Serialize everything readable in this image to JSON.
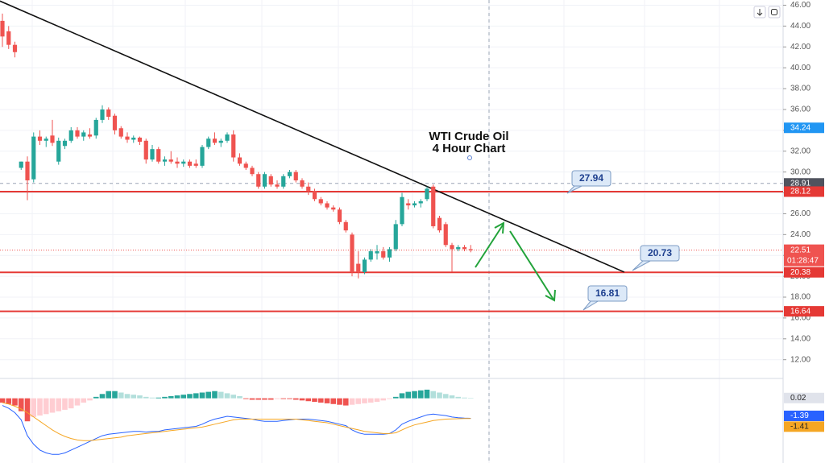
{
  "chart_data": {
    "type": "candlestick",
    "title": "WTI Crude Oil",
    "subtitle": "4 Hour Chart",
    "ylim": [
      10.2,
      46.5
    ],
    "yticks": [
      {
        "value": 12,
        "label": "12.00"
      },
      {
        "value": 14,
        "label": "14.00"
      },
      {
        "value": 16,
        "label": "16.00"
      },
      {
        "value": 18,
        "label": "18.00"
      },
      {
        "value": 20,
        "label": "20.00"
      },
      {
        "value": 22,
        "label": "22.00"
      },
      {
        "value": 24,
        "label": "24.00"
      },
      {
        "value": 26,
        "label": "26.00"
      },
      {
        "value": 28,
        "label": "28.00"
      },
      {
        "value": 30,
        "label": "30.00"
      },
      {
        "value": 32,
        "label": "32.00"
      },
      {
        "value": 34,
        "label": "34.00"
      },
      {
        "value": 36,
        "label": "36.00"
      },
      {
        "value": 38,
        "label": "38.00"
      },
      {
        "value": 40,
        "label": "40.00"
      },
      {
        "value": 42,
        "label": "42.00"
      },
      {
        "value": 44,
        "label": "44.00"
      },
      {
        "value": 46,
        "label": "46.00"
      }
    ],
    "grid": true,
    "up_color": "#26a69a",
    "down_color": "#ef5350",
    "open": [
      44.5,
      43.5,
      42.2,
      30.4,
      31,
      29.3,
      33.4,
      33,
      33.5,
      31,
      32.5,
      33,
      34,
      33.4,
      33.6,
      33.5,
      35,
      36,
      35.4,
      34.2,
      33.4,
      33.1,
      33.3,
      33,
      31.2,
      32.2,
      31,
      31.2,
      31,
      30.8,
      31,
      30.8,
      30.6,
      32.4,
      33.2,
      32.8,
      33,
      33.6,
      31.4,
      30.8,
      30.4,
      29.8,
      28.6,
      29.6,
      28.8,
      28.6,
      29.6,
      30,
      29.2,
      28.6,
      28.2,
      27.4,
      27,
      26.6,
      26.4,
      25.2,
      24,
      21.2,
      20.4,
      21.6,
      22.2,
      22.4,
      21.8,
      22.6,
      25,
      27,
      26.8,
      27,
      27.4,
      28.6,
      25.6,
      25,
      23,
      22.6,
      22.8,
      22.6
    ],
    "high": [
      45.2,
      44,
      42.5,
      31,
      31.5,
      33.8,
      34,
      33.4,
      35,
      33.3,
      33.2,
      34.3,
      34.3,
      34,
      34.2,
      35.2,
      36.4,
      36.2,
      35.6,
      34.4,
      33.8,
      33.5,
      33.4,
      33.2,
      32.6,
      32.4,
      31.5,
      32,
      31.4,
      31.2,
      31.2,
      31.2,
      32.6,
      33.4,
      33.8,
      33.2,
      33.8,
      34,
      31.8,
      31,
      30.6,
      30,
      30,
      29.8,
      29.2,
      29.8,
      30.2,
      30.2,
      29.4,
      29,
      28.4,
      27.6,
      27.2,
      26.8,
      26.6,
      25.4,
      24.2,
      22.4,
      21.8,
      22.6,
      23,
      22.8,
      22.8,
      25.4,
      28,
      27.4,
      27.2,
      27.4,
      28.6,
      28.8,
      25.8,
      25.2,
      23.2,
      23,
      23,
      23
    ],
    "low": [
      42,
      41.8,
      41,
      30.2,
      27.3,
      29,
      32.6,
      32.4,
      32.5,
      30.7,
      32.2,
      32.8,
      33.2,
      33,
      33.2,
      33.2,
      34.7,
      35,
      33.6,
      33.2,
      32.8,
      32.8,
      32.6,
      30.8,
      31,
      30.8,
      30.6,
      30.8,
      30.4,
      30.5,
      30.4,
      30.4,
      30.4,
      32.2,
      32.6,
      32.4,
      32.8,
      31,
      30.6,
      30.2,
      29.6,
      28.4,
      28.4,
      28.6,
      28.4,
      28.4,
      29.4,
      29,
      28.4,
      27.8,
      27.2,
      26.8,
      26.4,
      26.2,
      25,
      24.2,
      20,
      19.8,
      20.2,
      21.4,
      21.6,
      21.6,
      21.4,
      22.4,
      24.8,
      26.4,
      26.6,
      26.6,
      27.2,
      24.6,
      24.2,
      22.8,
      20.4,
      22.4,
      22.4,
      22.3
    ],
    "close": [
      43,
      42.2,
      41.5,
      31,
      29.2,
      33.4,
      33,
      33.2,
      32.8,
      33,
      33,
      34,
      33.4,
      33.8,
      33.4,
      35,
      36,
      35.3,
      34,
      33.4,
      33.1,
      33.3,
      32.9,
      31.2,
      32.2,
      31,
      31.2,
      31,
      30.8,
      31,
      30.6,
      30.6,
      32.4,
      33.2,
      32.8,
      33,
      33.6,
      31.4,
      30.8,
      30.4,
      29.8,
      28.6,
      29.8,
      28.8,
      28.6,
      29.6,
      30,
      29.2,
      28.6,
      28.2,
      27.4,
      27,
      26.6,
      26.4,
      25.2,
      24.4,
      20.4,
      20.4,
      21.6,
      22.4,
      22.4,
      21.8,
      22.6,
      25,
      27.6,
      26.8,
      27,
      27.2,
      28.4,
      24.8,
      24.4,
      23,
      22.6,
      22.8,
      22.6,
      22.51
    ],
    "levels": {
      "values": [
        28.12,
        20.38,
        16.64
      ],
      "color": "#e53935"
    },
    "callouts": [
      27.94,
      20.73,
      16.81
    ],
    "trendline": {
      "start": [
        -0.4,
        46.4
      ],
      "end": [
        99.6,
        20.4
      ],
      "color": "#111111"
    },
    "marker_price": 34.24,
    "crosshair_price": 28.91,
    "countdown": "01:28:47",
    "macd": {
      "ylim": [
        -4.5,
        1.1
      ],
      "histogram": [
        -0.3,
        -0.4,
        -0.5,
        -0.9,
        -1.6,
        -1.3,
        -1.2,
        -1.1,
        -1,
        -0.9,
        -0.8,
        -0.7,
        -0.5,
        -0.3,
        -0.15,
        0.1,
        0.3,
        0.5,
        0.5,
        0.4,
        0.3,
        0.25,
        0.2,
        0.1,
        0.05,
        0.05,
        0.1,
        0.15,
        0.2,
        0.25,
        0.3,
        0.35,
        0.4,
        0.45,
        0.5,
        0.45,
        0.35,
        0.25,
        0.15,
        -0.05,
        -0.1,
        -0.1,
        -0.1,
        -0.1,
        -0.05,
        -0.05,
        -0.05,
        -0.1,
        -0.15,
        -0.2,
        -0.25,
        -0.3,
        -0.35,
        -0.4,
        -0.45,
        -0.5,
        -0.45,
        -0.4,
        -0.35,
        -0.3,
        -0.25,
        -0.15,
        -0.05,
        0.1,
        0.35,
        0.45,
        0.5,
        0.55,
        0.6,
        0.5,
        0.4,
        0.3,
        0.2,
        0.1,
        0.05,
        0.02
      ],
      "hist_colors": {
        "up_grow": "#26a69a",
        "up_fall": "#b2dfdb",
        "down_grow": "#ef5350",
        "down_fall": "#ffcdd2"
      },
      "macd_line": {
        "color": "#2962ff",
        "values": [
          -0.5,
          -0.7,
          -1.0,
          -1.5,
          -2.6,
          -3.2,
          -3.6,
          -3.8,
          -3.9,
          -3.9,
          -3.8,
          -3.6,
          -3.4,
          -3.2,
          -3.0,
          -2.8,
          -2.6,
          -2.5,
          -2.45,
          -2.4,
          -2.35,
          -2.3,
          -2.3,
          -2.35,
          -2.3,
          -2.3,
          -2.2,
          -2.15,
          -2.1,
          -2.05,
          -2.0,
          -1.95,
          -1.8,
          -1.6,
          -1.45,
          -1.35,
          -1.25,
          -1.3,
          -1.35,
          -1.4,
          -1.45,
          -1.55,
          -1.6,
          -1.6,
          -1.6,
          -1.55,
          -1.5,
          -1.45,
          -1.45,
          -1.45,
          -1.5,
          -1.55,
          -1.6,
          -1.7,
          -1.8,
          -1.9,
          -2.2,
          -2.4,
          -2.5,
          -2.5,
          -2.5,
          -2.5,
          -2.45,
          -2.2,
          -1.8,
          -1.6,
          -1.45,
          -1.3,
          -1.15,
          -1.1,
          -1.15,
          -1.2,
          -1.3,
          -1.35,
          -1.38,
          -1.39
        ]
      },
      "signal_line": {
        "color": "#f5a623",
        "values": [
          -0.3,
          -0.4,
          -0.55,
          -0.75,
          -1.0,
          -1.3,
          -1.6,
          -1.9,
          -2.2,
          -2.45,
          -2.65,
          -2.8,
          -2.9,
          -2.95,
          -2.95,
          -2.9,
          -2.85,
          -2.8,
          -2.75,
          -2.7,
          -2.6,
          -2.55,
          -2.5,
          -2.45,
          -2.4,
          -2.35,
          -2.3,
          -2.25,
          -2.2,
          -2.15,
          -2.1,
          -2.05,
          -2.0,
          -1.9,
          -1.8,
          -1.7,
          -1.6,
          -1.5,
          -1.45,
          -1.45,
          -1.45,
          -1.45,
          -1.45,
          -1.45,
          -1.45,
          -1.45,
          -1.45,
          -1.45,
          -1.5,
          -1.55,
          -1.6,
          -1.65,
          -1.7,
          -1.8,
          -1.9,
          -2.0,
          -2.1,
          -2.2,
          -2.3,
          -2.35,
          -2.4,
          -2.45,
          -2.45,
          -2.4,
          -2.2,
          -2.0,
          -1.85,
          -1.75,
          -1.65,
          -1.55,
          -1.5,
          -1.45,
          -1.43,
          -1.42,
          -1.41,
          -1.41
        ]
      }
    }
  }
}
